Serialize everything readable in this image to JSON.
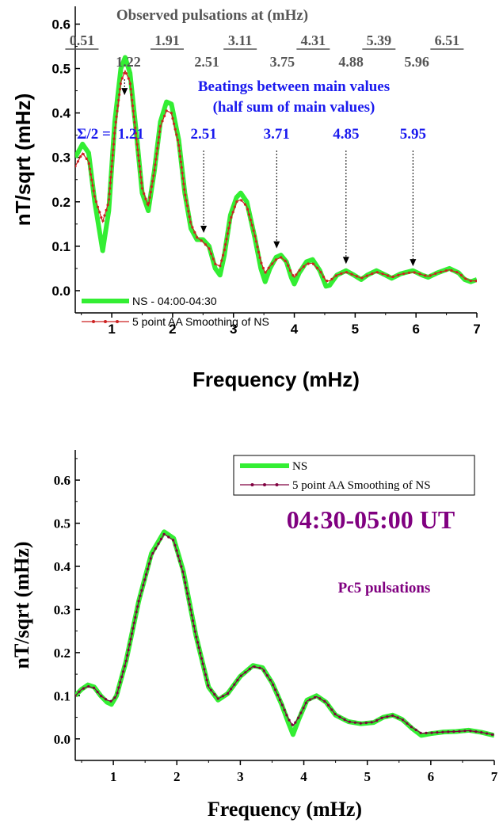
{
  "chart_data": [
    {
      "type": "line",
      "title": "",
      "xlabel": "Frequency (mHz)",
      "ylabel": "nT/sqrt (mHz)",
      "xlim": [
        0.4,
        7.0
      ],
      "ylim": [
        -0.05,
        0.64
      ],
      "x_ticks": [
        1,
        2,
        3,
        4,
        5,
        6,
        7
      ],
      "y_ticks": [
        0.0,
        0.1,
        0.2,
        0.3,
        0.4,
        0.5,
        0.6
      ],
      "y_tick_labels": [
        "0.0",
        "0.1",
        "0.2",
        "0.3",
        "0.4",
        "0.5",
        "0.6"
      ],
      "grid": false,
      "legend_position": "bottom-left",
      "series": [
        {
          "name": "NS - 04:00-04:30",
          "color": "#33ee33",
          "style": "thick-line",
          "points": [
            [
              0.4,
              0.3
            ],
            [
              0.52,
              0.33
            ],
            [
              0.62,
              0.31
            ],
            [
              0.72,
              0.2
            ],
            [
              0.85,
              0.09
            ],
            [
              0.95,
              0.18
            ],
            [
              1.05,
              0.38
            ],
            [
              1.15,
              0.5
            ],
            [
              1.22,
              0.525
            ],
            [
              1.3,
              0.49
            ],
            [
              1.4,
              0.36
            ],
            [
              1.5,
              0.22
            ],
            [
              1.6,
              0.18
            ],
            [
              1.7,
              0.27
            ],
            [
              1.8,
              0.38
            ],
            [
              1.9,
              0.425
            ],
            [
              1.98,
              0.42
            ],
            [
              2.1,
              0.34
            ],
            [
              2.2,
              0.22
            ],
            [
              2.3,
              0.14
            ],
            [
              2.4,
              0.115
            ],
            [
              2.5,
              0.115
            ],
            [
              2.6,
              0.1
            ],
            [
              2.7,
              0.05
            ],
            [
              2.78,
              0.035
            ],
            [
              2.85,
              0.08
            ],
            [
              2.95,
              0.17
            ],
            [
              3.05,
              0.21
            ],
            [
              3.12,
              0.22
            ],
            [
              3.22,
              0.2
            ],
            [
              3.35,
              0.12
            ],
            [
              3.45,
              0.05
            ],
            [
              3.52,
              0.02
            ],
            [
              3.6,
              0.05
            ],
            [
              3.7,
              0.075
            ],
            [
              3.78,
              0.08
            ],
            [
              3.87,
              0.065
            ],
            [
              3.95,
              0.03
            ],
            [
              4.0,
              0.015
            ],
            [
              4.08,
              0.04
            ],
            [
              4.2,
              0.065
            ],
            [
              4.3,
              0.07
            ],
            [
              4.42,
              0.045
            ],
            [
              4.52,
              0.01
            ],
            [
              4.58,
              0.012
            ],
            [
              4.7,
              0.035
            ],
            [
              4.85,
              0.045
            ],
            [
              4.98,
              0.035
            ],
            [
              5.1,
              0.025
            ],
            [
              5.2,
              0.035
            ],
            [
              5.35,
              0.045
            ],
            [
              5.5,
              0.035
            ],
            [
              5.6,
              0.028
            ],
            [
              5.75,
              0.038
            ],
            [
              5.95,
              0.045
            ],
            [
              6.1,
              0.035
            ],
            [
              6.2,
              0.03
            ],
            [
              6.35,
              0.04
            ],
            [
              6.55,
              0.05
            ],
            [
              6.7,
              0.04
            ],
            [
              6.8,
              0.025
            ],
            [
              6.9,
              0.02
            ],
            [
              7.0,
              0.025
            ]
          ]
        },
        {
          "name": "5 point AA Smoothing of NS",
          "color": "#cc2222",
          "style": "line-with-dots",
          "points": [
            [
              0.4,
              0.28
            ],
            [
              0.52,
              0.31
            ],
            [
              0.62,
              0.29
            ],
            [
              0.72,
              0.21
            ],
            [
              0.85,
              0.155
            ],
            [
              0.95,
              0.2
            ],
            [
              1.05,
              0.36
            ],
            [
              1.15,
              0.47
            ],
            [
              1.22,
              0.495
            ],
            [
              1.3,
              0.47
            ],
            [
              1.4,
              0.35
            ],
            [
              1.5,
              0.23
            ],
            [
              1.6,
              0.19
            ],
            [
              1.7,
              0.27
            ],
            [
              1.8,
              0.37
            ],
            [
              1.9,
              0.405
            ],
            [
              1.98,
              0.4
            ],
            [
              2.1,
              0.33
            ],
            [
              2.2,
              0.22
            ],
            [
              2.3,
              0.15
            ],
            [
              2.4,
              0.12
            ],
            [
              2.5,
              0.11
            ],
            [
              2.6,
              0.095
            ],
            [
              2.7,
              0.06
            ],
            [
              2.78,
              0.055
            ],
            [
              2.85,
              0.09
            ],
            [
              2.95,
              0.16
            ],
            [
              3.05,
              0.2
            ],
            [
              3.12,
              0.205
            ],
            [
              3.22,
              0.19
            ],
            [
              3.35,
              0.125
            ],
            [
              3.45,
              0.065
            ],
            [
              3.52,
              0.04
            ],
            [
              3.6,
              0.055
            ],
            [
              3.7,
              0.07
            ],
            [
              3.78,
              0.075
            ],
            [
              3.87,
              0.065
            ],
            [
              3.95,
              0.04
            ],
            [
              4.0,
              0.03
            ],
            [
              4.08,
              0.045
            ],
            [
              4.2,
              0.06
            ],
            [
              4.3,
              0.062
            ],
            [
              4.42,
              0.045
            ],
            [
              4.52,
              0.022
            ],
            [
              4.58,
              0.022
            ],
            [
              4.7,
              0.035
            ],
            [
              4.85,
              0.042
            ],
            [
              4.98,
              0.035
            ],
            [
              5.1,
              0.028
            ],
            [
              5.2,
              0.034
            ],
            [
              5.35,
              0.042
            ],
            [
              5.5,
              0.036
            ],
            [
              5.6,
              0.03
            ],
            [
              5.75,
              0.037
            ],
            [
              5.95,
              0.042
            ],
            [
              6.1,
              0.036
            ],
            [
              6.2,
              0.032
            ],
            [
              6.35,
              0.04
            ],
            [
              6.55,
              0.047
            ],
            [
              6.7,
              0.04
            ],
            [
              6.8,
              0.028
            ],
            [
              6.9,
              0.022
            ],
            [
              7.0,
              0.022
            ]
          ]
        }
      ],
      "annotations": {
        "observed_title": "Observed pulsations at (mHz)",
        "observed_top": [
          {
            "x": 0.51,
            "label": "0.51"
          },
          {
            "x": 1.91,
            "label": "1.91"
          },
          {
            "x": 3.11,
            "label": "3.11"
          },
          {
            "x": 4.31,
            "label": "4.31"
          },
          {
            "x": 5.39,
            "label": "5.39"
          },
          {
            "x": 6.51,
            "label": "6.51"
          }
        ],
        "observed_second": [
          {
            "x": 1.22,
            "label": "1.22"
          },
          {
            "x": 2.51,
            "label": "2.51"
          },
          {
            "x": 3.75,
            "label": "3.75"
          },
          {
            "x": 4.88,
            "label": "4.88"
          },
          {
            "x": 5.96,
            "label": "5.96"
          }
        ],
        "beatings_line1": "Beatings between main values",
        "beatings_line2": "(half sum of main values)",
        "sigma_prefix": "Σ/2 =",
        "beatings": [
          {
            "x": 1.21,
            "label": "1.21",
            "y_to": 0.44
          },
          {
            "x": 2.51,
            "label": "2.51",
            "y_to": 0.13
          },
          {
            "x": 3.71,
            "label": "3.71",
            "y_to": 0.095
          },
          {
            "x": 4.85,
            "label": "4.85",
            "y_to": 0.06
          },
          {
            "x": 5.95,
            "label": "5.95",
            "y_to": 0.055
          }
        ],
        "colors": {
          "observed": "#555555",
          "beatings": "#1a1aee",
          "arrow": "#000000"
        }
      }
    },
    {
      "type": "line",
      "title": "04:30-05:00 UT",
      "subtitle": "Pc5 pulsations",
      "title_color": "#800080",
      "xlabel": "Frequency (mHz)",
      "ylabel": "nT/sqrt (mHz)",
      "xlim": [
        0.4,
        7.0
      ],
      "ylim": [
        -0.05,
        0.67
      ],
      "x_ticks": [
        1,
        2,
        3,
        4,
        5,
        6,
        7
      ],
      "y_ticks": [
        0.0,
        0.1,
        0.2,
        0.3,
        0.4,
        0.5,
        0.6
      ],
      "y_tick_labels": [
        "0.0",
        "0.1",
        "0.2",
        "0.3",
        "0.4",
        "0.5",
        "0.6"
      ],
      "grid": false,
      "legend_position": "top-right",
      "series": [
        {
          "name": "NS",
          "color": "#33ee33",
          "style": "thick-line",
          "points": [
            [
              0.4,
              0.1
            ],
            [
              0.5,
              0.115
            ],
            [
              0.6,
              0.125
            ],
            [
              0.7,
              0.12
            ],
            [
              0.8,
              0.1
            ],
            [
              0.9,
              0.085
            ],
            [
              0.97,
              0.08
            ],
            [
              1.05,
              0.1
            ],
            [
              1.2,
              0.18
            ],
            [
              1.4,
              0.32
            ],
            [
              1.6,
              0.43
            ],
            [
              1.8,
              0.48
            ],
            [
              1.95,
              0.465
            ],
            [
              2.1,
              0.39
            ],
            [
              2.3,
              0.24
            ],
            [
              2.5,
              0.12
            ],
            [
              2.65,
              0.09
            ],
            [
              2.8,
              0.105
            ],
            [
              3.0,
              0.145
            ],
            [
              3.2,
              0.17
            ],
            [
              3.35,
              0.165
            ],
            [
              3.5,
              0.13
            ],
            [
              3.65,
              0.08
            ],
            [
              3.75,
              0.04
            ],
            [
              3.83,
              0.01
            ],
            [
              3.92,
              0.045
            ],
            [
              4.05,
              0.09
            ],
            [
              4.2,
              0.1
            ],
            [
              4.35,
              0.085
            ],
            [
              4.5,
              0.055
            ],
            [
              4.7,
              0.04
            ],
            [
              4.9,
              0.035
            ],
            [
              5.1,
              0.038
            ],
            [
              5.25,
              0.05
            ],
            [
              5.4,
              0.055
            ],
            [
              5.55,
              0.045
            ],
            [
              5.7,
              0.025
            ],
            [
              5.85,
              0.008
            ],
            [
              6.0,
              0.012
            ],
            [
              6.2,
              0.016
            ],
            [
              6.4,
              0.017
            ],
            [
              6.6,
              0.02
            ],
            [
              6.8,
              0.015
            ],
            [
              7.0,
              0.008
            ]
          ]
        },
        {
          "name": "5 point AA Smoothing of NS",
          "color": "#800040",
          "style": "line-with-dots",
          "points": [
            [
              0.4,
              0.1
            ],
            [
              0.5,
              0.115
            ],
            [
              0.6,
              0.122
            ],
            [
              0.7,
              0.118
            ],
            [
              0.8,
              0.1
            ],
            [
              0.9,
              0.09
            ],
            [
              0.97,
              0.087
            ],
            [
              1.05,
              0.1
            ],
            [
              1.2,
              0.18
            ],
            [
              1.4,
              0.32
            ],
            [
              1.6,
              0.425
            ],
            [
              1.8,
              0.475
            ],
            [
              1.95,
              0.46
            ],
            [
              2.1,
              0.385
            ],
            [
              2.3,
              0.24
            ],
            [
              2.5,
              0.12
            ],
            [
              2.65,
              0.093
            ],
            [
              2.8,
              0.105
            ],
            [
              3.0,
              0.145
            ],
            [
              3.2,
              0.168
            ],
            [
              3.35,
              0.163
            ],
            [
              3.5,
              0.13
            ],
            [
              3.65,
              0.082
            ],
            [
              3.75,
              0.048
            ],
            [
              3.83,
              0.03
            ],
            [
              3.92,
              0.05
            ],
            [
              4.05,
              0.088
            ],
            [
              4.2,
              0.098
            ],
            [
              4.35,
              0.085
            ],
            [
              4.5,
              0.056
            ],
            [
              4.7,
              0.04
            ],
            [
              4.9,
              0.036
            ],
            [
              5.1,
              0.039
            ],
            [
              5.25,
              0.05
            ],
            [
              5.4,
              0.054
            ],
            [
              5.55,
              0.045
            ],
            [
              5.7,
              0.027
            ],
            [
              5.85,
              0.013
            ],
            [
              6.0,
              0.014
            ],
            [
              6.2,
              0.016
            ],
            [
              6.4,
              0.017
            ],
            [
              6.6,
              0.019
            ],
            [
              6.8,
              0.015
            ],
            [
              7.0,
              0.009
            ]
          ]
        }
      ]
    }
  ]
}
